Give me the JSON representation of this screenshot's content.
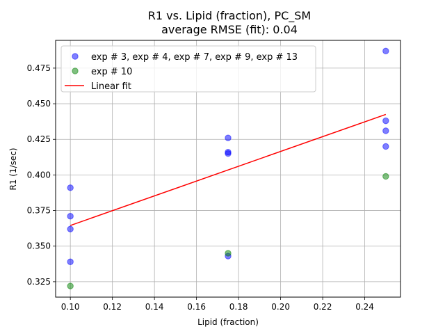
{
  "chart_data": {
    "type": "scatter",
    "title": [
      "R1 vs. Lipid (fraction), PC_SM",
      "average RMSE (fit): 0.04"
    ],
    "xlabel": "Lipid (fraction)",
    "ylabel": "R1 (1/sec)",
    "xlim": [
      0.093,
      0.257
    ],
    "ylim": [
      0.3142,
      0.4945
    ],
    "xticks": [
      0.1,
      0.12,
      0.14,
      0.16,
      0.18,
      0.2,
      0.22,
      0.24
    ],
    "xtick_labels": [
      "0.10",
      "0.12",
      "0.14",
      "0.16",
      "0.18",
      "0.20",
      "0.22",
      "0.24"
    ],
    "yticks": [
      0.325,
      0.35,
      0.375,
      0.4,
      0.425,
      0.45,
      0.475
    ],
    "ytick_labels": [
      "0.325",
      "0.350",
      "0.375",
      "0.400",
      "0.425",
      "0.450",
      "0.475"
    ],
    "grid": true,
    "legend_position": "top-left",
    "series": [
      {
        "name": "exp # 3, exp # 4, exp # 7, exp # 9, exp # 13",
        "kind": "scatter",
        "color": "#0000ff",
        "x": [
          0.1,
          0.1,
          0.1,
          0.1,
          0.175,
          0.175,
          0.175,
          0.175,
          0.25,
          0.25,
          0.25,
          0.25
        ],
        "y": [
          0.391,
          0.371,
          0.362,
          0.339,
          0.426,
          0.416,
          0.415,
          0.343,
          0.487,
          0.438,
          0.431,
          0.42
        ]
      },
      {
        "name": "exp # 10",
        "kind": "scatter",
        "color": "#008000",
        "x": [
          0.1,
          0.175,
          0.25
        ],
        "y": [
          0.322,
          0.345,
          0.399
        ]
      },
      {
        "name": "Linear fit",
        "kind": "line",
        "color": "#ff0000",
        "x": [
          0.1,
          0.25
        ],
        "y": [
          0.3645,
          0.4425
        ]
      }
    ]
  }
}
